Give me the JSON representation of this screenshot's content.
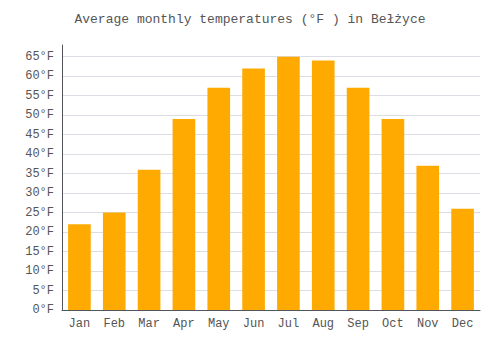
{
  "chart_data": {
    "type": "bar",
    "title": "Average monthly temperatures (°F ) in Bełżyce",
    "categories": [
      "Jan",
      "Feb",
      "Mar",
      "Apr",
      "May",
      "Jun",
      "Jul",
      "Aug",
      "Sep",
      "Oct",
      "Nov",
      "Dec"
    ],
    "values": [
      22,
      25,
      36,
      49,
      57,
      62,
      65,
      64,
      57,
      49,
      37,
      26
    ],
    "color": "#FFAA00",
    "ylim": [
      0,
      68
    ],
    "yticks": [
      {
        "value": 0,
        "label": "0°F"
      },
      {
        "value": 5,
        "label": "5°F"
      },
      {
        "value": 10,
        "label": "10°F"
      },
      {
        "value": 15,
        "label": "15°F"
      },
      {
        "value": 20,
        "label": "20°F"
      },
      {
        "value": 25,
        "label": "25°F"
      },
      {
        "value": 30,
        "label": "30°F"
      },
      {
        "value": 35,
        "label": "35°F"
      },
      {
        "value": 40,
        "label": "40°F"
      },
      {
        "value": 45,
        "label": "45°F"
      },
      {
        "value": 50,
        "label": "50°F"
      },
      {
        "value": 55,
        "label": "55°F"
      },
      {
        "value": 60,
        "label": "60°F"
      },
      {
        "value": 65,
        "label": "65°F"
      }
    ],
    "grid": true
  }
}
